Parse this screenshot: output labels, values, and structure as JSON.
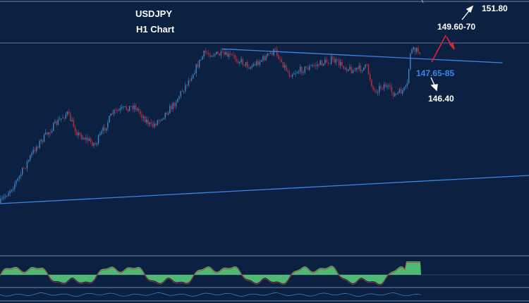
{
  "chart_data": {
    "type": "candlestick",
    "title": "USDJPY",
    "subtitle": "H1 Chart",
    "annotations": {
      "target_high": "151.80",
      "target_mid": "149.60-70",
      "support": "147.65-85",
      "target_low": "146.40"
    },
    "horizontal_level": 149.1,
    "trendlines": [
      {
        "x": [
          0,
          100
        ],
        "y": [
          149.28,
          148.35
        ]
      },
      {
        "x": [
          -40,
          170
        ],
        "y": [
          143.0,
          145.1
        ]
      }
    ],
    "ylim": [
      142.0,
      150.5
    ],
    "oscillator": {
      "type": "histogram",
      "ylim": [
        -1,
        1
      ]
    },
    "colors": {
      "background": "#0c2142",
      "bull": "#3e87c9",
      "bear": "#c0303a",
      "trendline": "#3a86e8",
      "support_label": "#3a86e8",
      "arrow_up": "#ffffff",
      "arrow_red": "#e0213a",
      "oscillator_fill": "#4fb872"
    }
  }
}
